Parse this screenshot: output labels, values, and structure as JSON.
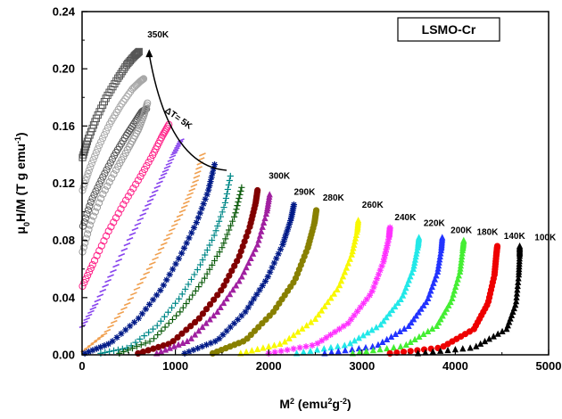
{
  "chart_data": {
    "type": "scatter",
    "title": "",
    "xlabel_main": "M",
    "xlabel_sup1": "2",
    "xlabel_units_open": " (emu",
    "xlabel_sup2": "2",
    "xlabel_units_mid": "g",
    "xlabel_sup3": "-2",
    "xlabel_units_close": ")",
    "ylabel_main": "μ",
    "ylabel_sub": "0",
    "ylabel_rest": "H/M (T g emu",
    "ylabel_sup": "-1",
    "ylabel_close": ")",
    "xlim": [
      0,
      5000
    ],
    "ylim": [
      0,
      0.24
    ],
    "x_ticks": [
      "0",
      "1000",
      "2000",
      "3000",
      "4000",
      "5000"
    ],
    "y_ticks": [
      "0.00",
      "0.04",
      "0.08",
      "0.12",
      "0.16",
      "0.20",
      "0.24"
    ],
    "legend_box_label": "LSMO-Cr",
    "annotation_text": "ΔT= 5K",
    "temp_labels": [
      {
        "text": "350K",
        "x": 700,
        "y": 0.222
      },
      {
        "text": "300K",
        "x": 2000,
        "y": 0.123
      },
      {
        "text": "290K",
        "x": 2270,
        "y": 0.112
      },
      {
        "text": "280K",
        "x": 2580,
        "y": 0.108
      },
      {
        "text": "260K",
        "x": 3000,
        "y": 0.103
      },
      {
        "text": "240K",
        "x": 3350,
        "y": 0.094
      },
      {
        "text": "220K",
        "x": 3660,
        "y": 0.09
      },
      {
        "text": "200K",
        "x": 3950,
        "y": 0.085
      },
      {
        "text": "180K",
        "x": 4230,
        "y": 0.084
      },
      {
        "text": "140K",
        "x": 4520,
        "y": 0.081
      },
      {
        "text": "100K",
        "x": 4850,
        "y": 0.08
      }
    ],
    "series": [
      {
        "color": "#555555",
        "marker": "square-open",
        "x": [
          5,
          60,
          150,
          260,
          380,
          480,
          560,
          610
        ],
        "y": [
          0.138,
          0.15,
          0.165,
          0.18,
          0.193,
          0.203,
          0.209,
          0.212
        ]
      },
      {
        "color": "#a8a8a8",
        "marker": "circle-open",
        "x": [
          5,
          80,
          180,
          300,
          420,
          540,
          620,
          660
        ],
        "y": [
          0.115,
          0.13,
          0.146,
          0.162,
          0.175,
          0.186,
          0.191,
          0.193
        ]
      },
      {
        "color": "#555555",
        "marker": "circle-open",
        "x": [
          10,
          100,
          220,
          350,
          470,
          570,
          640,
          690
        ],
        "y": [
          0.09,
          0.108,
          0.124,
          0.14,
          0.153,
          0.163,
          0.17,
          0.172
        ]
      },
      {
        "color": "#999999",
        "marker": "circle-open",
        "x": [
          5,
          90,
          220,
          370,
          500,
          600,
          660,
          700
        ],
        "y": [
          0.072,
          0.092,
          0.112,
          0.13,
          0.145,
          0.157,
          0.167,
          0.176
        ]
      },
      {
        "color": "#ff2288",
        "marker": "circle-open",
        "x": [
          5,
          120,
          280,
          450,
          620,
          760,
          860,
          930
        ],
        "y": [
          0.048,
          0.064,
          0.086,
          0.106,
          0.124,
          0.14,
          0.153,
          0.161
        ]
      },
      {
        "color": "#8844ee",
        "marker": "dash",
        "x": [
          5,
          150,
          330,
          520,
          700,
          860,
          980,
          1060
        ],
        "y": [
          0.02,
          0.036,
          0.058,
          0.082,
          0.104,
          0.124,
          0.14,
          0.15
        ]
      },
      {
        "color": "#f0a050",
        "marker": "dash",
        "x": [
          20,
          250,
          480,
          700,
          900,
          1080,
          1210,
          1290
        ],
        "y": [
          0.003,
          0.015,
          0.035,
          0.058,
          0.08,
          0.101,
          0.12,
          0.14
        ]
      },
      {
        "color": "#001a88",
        "marker": "star",
        "x": [
          30,
          300,
          600,
          850,
          1060,
          1230,
          1350,
          1420
        ],
        "y": [
          0.001,
          0.008,
          0.025,
          0.046,
          0.07,
          0.093,
          0.114,
          0.133
        ]
      },
      {
        "color": "#008888",
        "marker": "plus",
        "x": [
          200,
          500,
          800,
          1050,
          1260,
          1420,
          1530,
          1590
        ],
        "y": [
          0.001,
          0.005,
          0.02,
          0.04,
          0.062,
          0.084,
          0.105,
          0.125
        ]
      },
      {
        "color": "#0a5a0a",
        "marker": "plus",
        "x": [
          400,
          750,
          1050,
          1300,
          1500,
          1640,
          1710
        ],
        "y": [
          0.001,
          0.01,
          0.03,
          0.052,
          0.075,
          0.098,
          0.117
        ]
      },
      {
        "color": "#800000",
        "marker": "circle",
        "x": [
          600,
          950,
          1250,
          1500,
          1680,
          1800,
          1860,
          1880
        ],
        "y": [
          0.001,
          0.008,
          0.025,
          0.046,
          0.068,
          0.09,
          0.106,
          0.115
        ]
      },
      {
        "color": "#a020a0",
        "marker": "triangle",
        "x": [
          800,
          1150,
          1450,
          1700,
          1880,
          1980,
          2010
        ],
        "y": [
          0.001,
          0.01,
          0.03,
          0.053,
          0.077,
          0.1,
          0.112
        ]
      },
      {
        "color": "#001a88",
        "marker": "star",
        "x": [
          1100,
          1450,
          1750,
          1980,
          2150,
          2240,
          2270
        ],
        "y": [
          0.001,
          0.01,
          0.03,
          0.053,
          0.077,
          0.095,
          0.105
        ]
      },
      {
        "color": "#888000",
        "marker": "circle",
        "x": [
          1400,
          1750,
          2050,
          2280,
          2420,
          2490,
          2510
        ],
        "y": [
          0.001,
          0.01,
          0.03,
          0.052,
          0.075,
          0.092,
          0.101
        ]
      },
      {
        "color": "#f8f800",
        "marker": "triangle",
        "x": [
          1700,
          2150,
          2500,
          2750,
          2890,
          2950,
          2960
        ],
        "y": [
          0.001,
          0.008,
          0.025,
          0.047,
          0.07,
          0.087,
          0.094
        ]
      },
      {
        "color": "#ff30ff",
        "marker": "star",
        "x": [
          2000,
          2500,
          2850,
          3100,
          3230,
          3290,
          3300
        ],
        "y": [
          0.001,
          0.007,
          0.022,
          0.043,
          0.065,
          0.082,
          0.089
        ]
      },
      {
        "color": "#22e8e8",
        "marker": "triangle",
        "x": [
          2300,
          2850,
          3200,
          3430,
          3550,
          3600,
          3610
        ],
        "y": [
          0.001,
          0.007,
          0.021,
          0.04,
          0.06,
          0.076,
          0.082
        ]
      },
      {
        "color": "#2233ff",
        "marker": "triangle",
        "x": [
          2600,
          3150,
          3500,
          3700,
          3810,
          3850,
          3860
        ],
        "y": [
          0.001,
          0.006,
          0.02,
          0.038,
          0.058,
          0.074,
          0.082
        ]
      },
      {
        "color": "#44ee33",
        "marker": "triangle",
        "x": [
          2900,
          3450,
          3800,
          3960,
          4050,
          4080,
          4090
        ],
        "y": [
          0.001,
          0.006,
          0.02,
          0.038,
          0.058,
          0.074,
          0.08
        ]
      },
      {
        "color": "#ee0000",
        "marker": "circle",
        "x": [
          3300,
          3850,
          4200,
          4350,
          4420,
          4440,
          4450
        ],
        "y": [
          0.001,
          0.005,
          0.018,
          0.036,
          0.056,
          0.07,
          0.076
        ]
      },
      {
        "color": "#000000",
        "marker": "triangle",
        "x": [
          3600,
          4200,
          4550,
          4650,
          4680,
          4690,
          4690
        ],
        "y": [
          0.001,
          0.005,
          0.018,
          0.036,
          0.056,
          0.07,
          0.076
        ]
      }
    ]
  }
}
